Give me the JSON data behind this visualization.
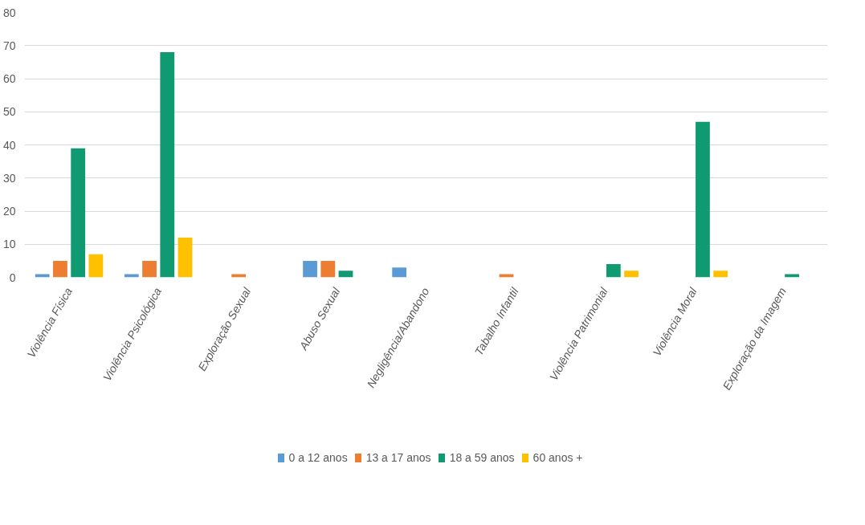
{
  "chart_data": {
    "type": "bar",
    "categories": [
      "Violência Física",
      "Violência Psicológica",
      "Exploração Sexual",
      "Abuso Sexual",
      "Negligência/Abandono",
      "Tabalho Infantil",
      "Violência Patrimonial",
      "Violência Moral",
      "Exploração da Imagem"
    ],
    "series": [
      {
        "name": "0 a 12 anos",
        "color": "#5b9bd5",
        "values": [
          1,
          1,
          0,
          5,
          3,
          0,
          0,
          0,
          0
        ]
      },
      {
        "name": "13 a 17 anos",
        "color": "#ed7d31",
        "values": [
          5,
          5,
          1,
          5,
          0,
          1,
          0,
          0,
          0
        ]
      },
      {
        "name": "18 a 59 anos",
        "color": "#0f9a72",
        "values": [
          39,
          68,
          0,
          2,
          0,
          0,
          4,
          47,
          1
        ]
      },
      {
        "name": "60 anos +",
        "color": "#ffc000",
        "values": [
          7,
          12,
          0,
          0,
          0,
          0,
          2,
          2,
          0
        ]
      }
    ],
    "ylim": [
      0,
      80
    ],
    "yticks": [
      0,
      10,
      20,
      30,
      40,
      50,
      60,
      70,
      80
    ],
    "grid": "y",
    "legend": "bottom"
  }
}
